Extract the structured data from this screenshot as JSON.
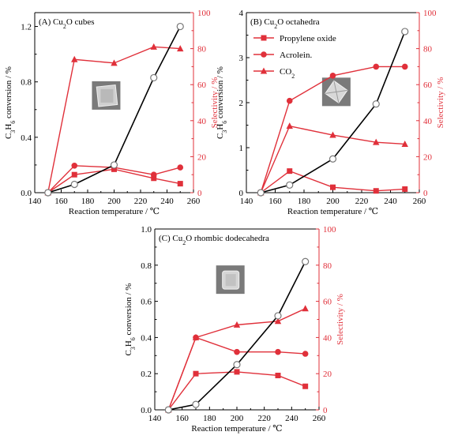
{
  "colors": {
    "conversion": "#000000",
    "selectivity": "#e0303a",
    "axis_right": "#e0303a"
  },
  "legend": [
    "Propylene oxide",
    "Acrolein.",
    "CO₂"
  ],
  "chart_data": [
    {
      "type": "line",
      "panel_label": "(A) Cu₂O cubes",
      "xlabel": "Reaction temperature / ℃",
      "ylabel_left": "C₃H₆ conversion / %",
      "ylabel_right": "Selectivity / %",
      "xlim": [
        140,
        260
      ],
      "xticks": [
        140,
        160,
        180,
        200,
        220,
        240,
        260
      ],
      "ylim_left": [
        0,
        1.3
      ],
      "yticks_left": [
        "0.0",
        "0.4",
        "0.8",
        "1.2"
      ],
      "ylim_right": [
        0,
        100
      ],
      "yticks_right": [
        0,
        20,
        40,
        60,
        80,
        100
      ],
      "conversion": {
        "x": [
          150,
          170,
          200,
          230,
          250
        ],
        "y": [
          0.0,
          0.06,
          0.2,
          0.83,
          1.2
        ]
      },
      "series": [
        {
          "name": "Propylene oxide",
          "marker": "square",
          "x": [
            150,
            170,
            200,
            230,
            250
          ],
          "y": [
            0,
            10,
            13,
            8,
            5
          ]
        },
        {
          "name": "Acrolein.",
          "marker": "circle",
          "x": [
            150,
            170,
            200,
            230,
            250
          ],
          "y": [
            0,
            15,
            14,
            10,
            14
          ]
        },
        {
          "name": "CO₂",
          "marker": "triangle",
          "x": [
            150,
            170,
            200,
            230,
            250
          ],
          "y": [
            0,
            74,
            72,
            81,
            80
          ]
        }
      ]
    },
    {
      "type": "line",
      "panel_label": "(B) Cu₂O octahedra",
      "xlabel": "Reaction temperature / ℃",
      "ylabel_left": "C₃H₆ conversion / %",
      "ylabel_right": "Selectivity / %",
      "xlim": [
        140,
        260
      ],
      "xticks": [
        140,
        160,
        180,
        200,
        220,
        240,
        260
      ],
      "ylim_left": [
        0,
        4
      ],
      "yticks_left": [
        "0",
        "1",
        "2",
        "3",
        "4"
      ],
      "ylim_right": [
        0,
        100
      ],
      "yticks_right": [
        0,
        20,
        40,
        60,
        80,
        100
      ],
      "conversion": {
        "x": [
          150,
          170,
          200,
          230,
          250
        ],
        "y": [
          0.0,
          0.17,
          0.75,
          1.97,
          3.58
        ]
      },
      "series": [
        {
          "name": "Propylene oxide",
          "marker": "square",
          "x": [
            150,
            170,
            200,
            230,
            250
          ],
          "y": [
            0,
            12,
            3,
            1,
            2
          ]
        },
        {
          "name": "Acrolein.",
          "marker": "circle",
          "x": [
            150,
            170,
            200,
            230,
            250
          ],
          "y": [
            0,
            51,
            65,
            70,
            70
          ]
        },
        {
          "name": "CO₂",
          "marker": "triangle",
          "x": [
            150,
            170,
            200,
            230,
            250
          ],
          "y": [
            0,
            37,
            32,
            28,
            27
          ]
        }
      ]
    },
    {
      "type": "line",
      "panel_label": "(C) Cu₂O rhombic dodecahedra",
      "xlabel": "Reaction temperature / ℃",
      "ylabel_left": "C₃H₆ conversion / %",
      "ylabel_right": "Selectivity / %",
      "xlim": [
        140,
        260
      ],
      "xticks": [
        140,
        160,
        180,
        200,
        220,
        240,
        260
      ],
      "ylim_left": [
        0,
        1.0
      ],
      "yticks_left": [
        "0.0",
        "0.2",
        "0.4",
        "0.6",
        "0.8",
        "1.0"
      ],
      "ylim_right": [
        0,
        100
      ],
      "yticks_right": [
        0,
        20,
        40,
        60,
        80,
        100
      ],
      "conversion": {
        "x": [
          150,
          170,
          200,
          230,
          250
        ],
        "y": [
          0.0,
          0.03,
          0.25,
          0.52,
          0.82
        ]
      },
      "series": [
        {
          "name": "Propylene oxide",
          "marker": "square",
          "x": [
            150,
            170,
            200,
            230,
            250
          ],
          "y": [
            0,
            20,
            21,
            19,
            13
          ]
        },
        {
          "name": "Acrolein.",
          "marker": "circle",
          "x": [
            150,
            170,
            200,
            230,
            250
          ],
          "y": [
            0,
            40,
            32,
            32,
            31
          ]
        },
        {
          "name": "CO₂",
          "marker": "triangle",
          "x": [
            150,
            170,
            200,
            230,
            250
          ],
          "y": [
            0,
            40,
            47,
            49,
            56
          ]
        }
      ]
    }
  ]
}
